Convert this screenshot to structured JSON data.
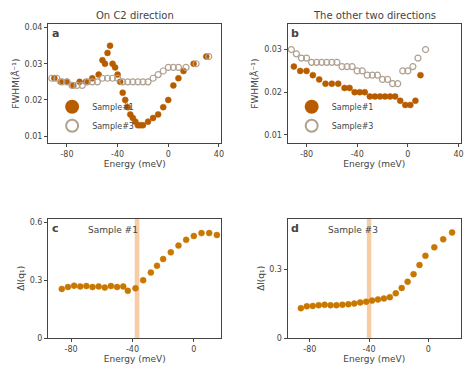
{
  "chart_data": [
    {
      "type": "scatter",
      "title": "On C2 direction",
      "xlabel": "Energy (meV)",
      "ylabel": "FWHM(Å⁻¹)",
      "annotations": [
        "a"
      ],
      "legend": "lower left",
      "grid": false,
      "xlim": [
        -95,
        42
      ],
      "xticks": [
        -80,
        -40,
        0,
        40
      ],
      "ylim": [
        0.008,
        0.041
      ],
      "yticks": [
        0.01,
        0.02,
        0.03,
        0.04
      ],
      "series": [
        {
          "name": "Sample#1",
          "color": "#b85c00",
          "marker": "circle",
          "x": [
            -90,
            -85,
            -80,
            -75,
            -70,
            -65,
            -60,
            -55,
            -52,
            -50,
            -48,
            -46,
            -44,
            -42,
            -40,
            -38,
            -36,
            -34,
            -32,
            -30,
            -28,
            -26,
            -24,
            -22,
            -20,
            -16,
            -12,
            -8,
            -4,
            0,
            4,
            8,
            12,
            20,
            30
          ],
          "values": [
            0.026,
            0.025,
            0.025,
            0.024,
            0.025,
            0.025,
            0.026,
            0.027,
            0.031,
            0.03,
            0.033,
            0.035,
            0.03,
            0.029,
            0.027,
            0.025,
            0.022,
            0.02,
            0.018,
            0.016,
            0.015,
            0.014,
            0.013,
            0.013,
            0.013,
            0.014,
            0.015,
            0.016,
            0.018,
            0.02,
            0.024,
            0.026,
            0.028,
            0.03,
            0.032
          ]
        },
        {
          "name": "Sample#3",
          "color": "#b0a090",
          "marker": "circle-open",
          "x": [
            -92,
            -88,
            -84,
            -80,
            -76,
            -72,
            -68,
            -64,
            -60,
            -56,
            -52,
            -48,
            -44,
            -40,
            -36,
            -32,
            -28,
            -24,
            -20,
            -16,
            -12,
            -8,
            -4,
            0,
            4,
            8,
            14,
            22,
            32
          ],
          "values": [
            0.026,
            0.026,
            0.025,
            0.025,
            0.024,
            0.024,
            0.024,
            0.025,
            0.025,
            0.025,
            0.026,
            0.026,
            0.026,
            0.026,
            0.025,
            0.025,
            0.025,
            0.025,
            0.025,
            0.025,
            0.026,
            0.027,
            0.028,
            0.029,
            0.029,
            0.029,
            0.029,
            0.03,
            0.032
          ]
        }
      ]
    },
    {
      "type": "scatter",
      "title": "The other two directions",
      "xlabel": "Energy (meV)",
      "ylabel": "FWHM(Å⁻¹)",
      "annotations": [
        "b"
      ],
      "legend": "lower left",
      "grid": false,
      "xlim": [
        -95,
        42
      ],
      "xticks": [
        -80,
        -40,
        0,
        40
      ],
      "ylim": [
        0.008,
        0.036
      ],
      "yticks": [
        0.01,
        0.02,
        0.03
      ],
      "series": [
        {
          "name": "Sample#1",
          "color": "#b85c00",
          "marker": "circle",
          "x": [
            -90,
            -85,
            -80,
            -75,
            -70,
            -65,
            -60,
            -55,
            -50,
            -46,
            -42,
            -38,
            -34,
            -30,
            -26,
            -22,
            -18,
            -14,
            -10,
            -6,
            -2,
            2,
            6,
            10
          ],
          "values": [
            0.026,
            0.025,
            0.025,
            0.024,
            0.023,
            0.022,
            0.022,
            0.022,
            0.021,
            0.021,
            0.02,
            0.02,
            0.02,
            0.019,
            0.019,
            0.019,
            0.019,
            0.019,
            0.019,
            0.018,
            0.017,
            0.017,
            0.018,
            0.024
          ]
        },
        {
          "name": "Sample#3",
          "color": "#b0a090",
          "marker": "circle-open",
          "x": [
            -92,
            -88,
            -84,
            -80,
            -76,
            -72,
            -68,
            -64,
            -60,
            -56,
            -52,
            -48,
            -44,
            -40,
            -36,
            -32,
            -28,
            -24,
            -20,
            -16,
            -12,
            -8,
            -4,
            0,
            4,
            8,
            14
          ],
          "values": [
            0.03,
            0.029,
            0.028,
            0.028,
            0.027,
            0.027,
            0.027,
            0.027,
            0.027,
            0.027,
            0.026,
            0.026,
            0.026,
            0.025,
            0.025,
            0.024,
            0.024,
            0.024,
            0.023,
            0.023,
            0.022,
            0.022,
            0.025,
            0.025,
            0.026,
            0.028,
            0.03
          ]
        }
      ]
    },
    {
      "type": "scatter",
      "xlabel": "Energy (meV)",
      "ylabel": "Δl(q₁)",
      "annotations": [
        "c",
        "Sample #1"
      ],
      "grid": false,
      "xlim": [
        -95,
        18
      ],
      "xticks": [
        -80,
        -40,
        0
      ],
      "ylim": [
        0,
        0.62
      ],
      "yticks": [
        0,
        0.3,
        0.6
      ],
      "color": "#c87800",
      "marker": "circle",
      "vspan": {
        "x": [
          -38.5,
          -35.5
        ],
        "color": "#f5c090"
      },
      "x": [
        -86,
        -82,
        -78,
        -74,
        -70,
        -66,
        -62,
        -58,
        -54,
        -50,
        -46,
        -43,
        -38,
        -33,
        -28,
        -24,
        -20,
        -15,
        -10,
        -5,
        0,
        5,
        10,
        15
      ],
      "values": [
        0.255,
        0.265,
        0.272,
        0.268,
        0.27,
        0.265,
        0.268,
        0.262,
        0.27,
        0.265,
        0.268,
        0.245,
        0.258,
        0.3,
        0.34,
        0.375,
        0.41,
        0.445,
        0.48,
        0.51,
        0.53,
        0.545,
        0.545,
        0.535
      ]
    },
    {
      "type": "scatter",
      "xlabel": "Energy (meV)",
      "ylabel": "Δl(q₁)",
      "annotations": [
        "d",
        "Sample #3"
      ],
      "grid": false,
      "xlim": [
        -95,
        22
      ],
      "xticks": [
        -80,
        -40,
        0
      ],
      "ylim": [
        0,
        0.52
      ],
      "yticks": [
        0,
        0.3
      ],
      "color": "#c87800",
      "marker": "circle",
      "vspan": {
        "x": [
          -41.5,
          -38.5
        ],
        "color": "#f5c090"
      },
      "x": [
        -86,
        -82,
        -78,
        -74,
        -70,
        -66,
        -62,
        -58,
        -54,
        -50,
        -46,
        -42,
        -38,
        -34,
        -30,
        -26,
        -22,
        -18,
        -14,
        -10,
        -6,
        -2,
        4,
        10,
        16
      ],
      "values": [
        0.13,
        0.138,
        0.14,
        0.143,
        0.145,
        0.143,
        0.143,
        0.145,
        0.147,
        0.15,
        0.155,
        0.158,
        0.163,
        0.168,
        0.172,
        0.178,
        0.195,
        0.218,
        0.245,
        0.278,
        0.318,
        0.358,
        0.395,
        0.43,
        0.46
      ]
    }
  ]
}
